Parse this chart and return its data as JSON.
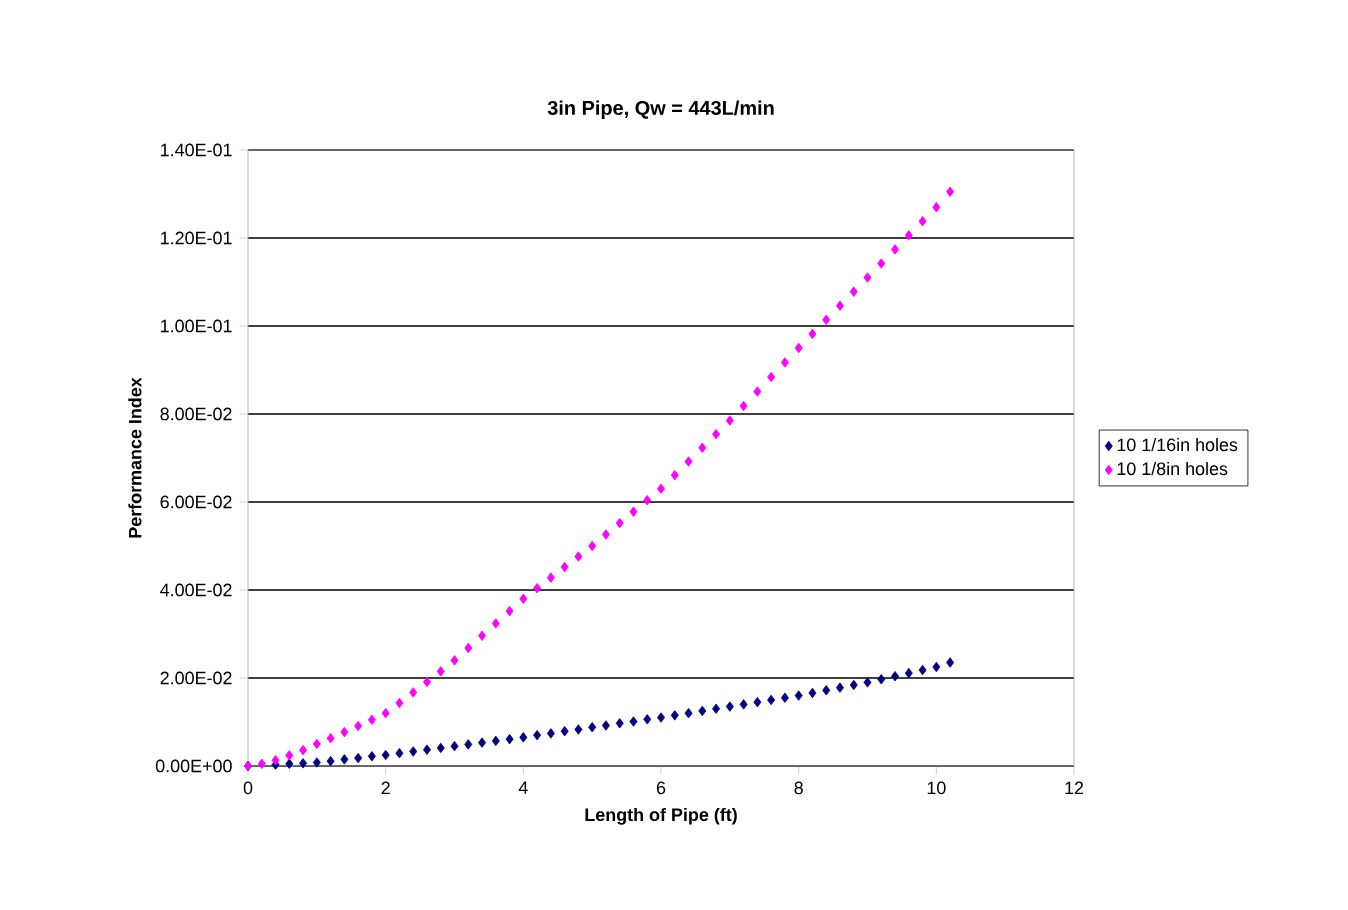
{
  "chart_data": {
    "type": "scatter",
    "title": "3in Pipe,  Qw = 443L/min",
    "xlabel": "Length of Pipe (ft)",
    "ylabel": "Performance Index",
    "x": [
      0,
      0.2,
      0.4,
      0.6,
      0.8,
      1.0,
      1.2,
      1.4,
      1.6,
      1.8,
      2.0,
      2.2,
      2.4,
      2.6,
      2.8,
      3.0,
      3.2,
      3.4,
      3.6,
      3.8,
      4.0,
      4.2,
      4.4,
      4.6,
      4.8,
      5.0,
      5.2,
      5.4,
      5.6,
      5.8,
      6.0,
      6.2,
      6.4,
      6.6,
      6.8,
      7.0,
      7.2,
      7.4,
      7.6,
      7.8,
      8.0,
      8.2,
      8.4,
      8.6,
      8.8,
      9.0,
      9.2,
      9.4,
      9.6,
      9.8,
      10.0,
      10.2
    ],
    "series": [
      {
        "name": "10 1/16in holes",
        "color": "#000080",
        "values": [
          0,
          null,
          0.0003,
          0.0005,
          0.0006,
          0.0008,
          0.0011,
          0.0015,
          0.0018,
          0.0022,
          0.0025,
          0.0029,
          0.0033,
          0.0037,
          0.0041,
          0.0045,
          0.0049,
          0.0053,
          0.0057,
          0.0061,
          0.0065,
          0.007,
          0.0074,
          0.0079,
          0.0083,
          0.0088,
          0.0092,
          0.0097,
          0.0101,
          0.0106,
          0.011,
          0.0115,
          0.012,
          0.0125,
          0.013,
          0.0135,
          0.014,
          0.0145,
          0.015,
          0.0155,
          0.016,
          0.0166,
          0.0172,
          0.0178,
          0.0184,
          0.019,
          0.0197,
          0.0204,
          0.0211,
          0.0218,
          0.0225,
          0.0235
        ]
      },
      {
        "name": "10 1/8in holes",
        "color": "#ff00ff",
        "values": [
          0,
          0.0005,
          0.0013,
          0.0024,
          0.0036,
          0.005,
          0.0063,
          0.0077,
          0.0091,
          0.0105,
          0.012,
          0.0143,
          0.0167,
          0.0191,
          0.0215,
          0.024,
          0.0268,
          0.0296,
          0.0324,
          0.0352,
          0.038,
          0.0404,
          0.0428,
          0.0452,
          0.0476,
          0.05,
          0.0526,
          0.0552,
          0.0578,
          0.0604,
          0.063,
          0.0661,
          0.0692,
          0.0723,
          0.0754,
          0.0785,
          0.0818,
          0.0851,
          0.0884,
          0.0917,
          0.095,
          0.0982,
          0.1014,
          0.1046,
          0.1078,
          0.111,
          0.1142,
          0.1174,
          0.1206,
          0.1238,
          0.127,
          0.1305
        ]
      }
    ],
    "xlim": [
      0,
      12
    ],
    "xticks": [
      0,
      2,
      4,
      6,
      8,
      10,
      12
    ],
    "ylim": [
      0,
      0.14
    ],
    "yticks": [
      {
        "value": 0,
        "label": "0.00E+00"
      },
      {
        "value": 0.02,
        "label": "2.00E-02"
      },
      {
        "value": 0.04,
        "label": "4.00E-02"
      },
      {
        "value": 0.06,
        "label": "6.00E-02"
      },
      {
        "value": 0.08,
        "label": "8.00E-02"
      },
      {
        "value": 0.1,
        "label": "1.00E-01"
      },
      {
        "value": 0.12,
        "label": "1.20E-01"
      },
      {
        "value": 0.14,
        "label": "1.40E-01"
      }
    ],
    "grid": "y",
    "legend": "right",
    "marker": "diamond"
  }
}
